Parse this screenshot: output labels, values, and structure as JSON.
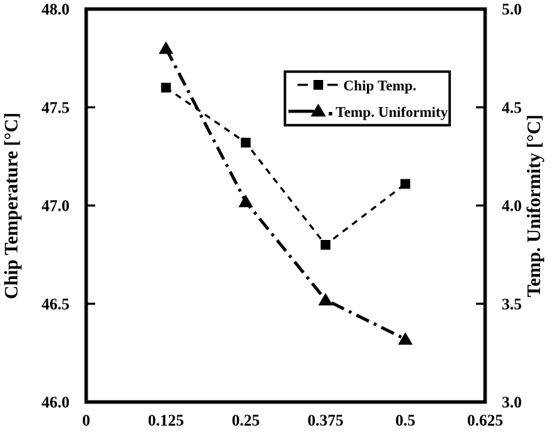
{
  "chart_data": {
    "type": "line",
    "title": "",
    "x": [
      0.125,
      0.25,
      0.375,
      0.5
    ],
    "series": [
      {
        "name": "Chip Temp.",
        "slug": "chip-temp",
        "axis": "left",
        "values": [
          47.6,
          47.32,
          46.8,
          47.11
        ],
        "marker": "square",
        "line_style": "dashed",
        "color": "#000000"
      },
      {
        "name": "Temp. Uniformity",
        "slug": "temp-uniformity",
        "axis": "right",
        "values": [
          4.8,
          4.02,
          3.52,
          3.32
        ],
        "marker": "triangle",
        "line_style": "dash-dot",
        "color": "#000000"
      }
    ],
    "x_axis": {
      "label": "",
      "range": [
        0,
        0.625
      ],
      "ticks": [
        0,
        0.125,
        0.25,
        0.375,
        0.5,
        0.625
      ],
      "tick_labels": [
        "0",
        "0.125",
        "0.25",
        "0.375",
        "0.5",
        "0.625"
      ]
    },
    "left_axis": {
      "label": "Chip Temperature [°C]",
      "range": [
        46.0,
        48.0
      ],
      "ticks": [
        46.0,
        46.5,
        47.0,
        47.5,
        48.0
      ],
      "tick_labels": [
        "46.0",
        "46.5",
        "47.0",
        "47.5",
        "48.0"
      ]
    },
    "right_axis": {
      "label": "Temp. Uniformity [°C]",
      "range": [
        3.0,
        5.0
      ],
      "ticks": [
        3.0,
        3.5,
        4.0,
        4.5,
        5.0
      ],
      "tick_labels": [
        "3.0",
        "3.5",
        "4.0",
        "4.5",
        "5.0"
      ]
    },
    "legend": {
      "position": "upper-right-inside",
      "entries": [
        "Chip Temp.",
        "Temp. Uniformity"
      ]
    },
    "grid": false,
    "colors": {
      "foreground": "#000000",
      "background": "#ffffff"
    }
  }
}
